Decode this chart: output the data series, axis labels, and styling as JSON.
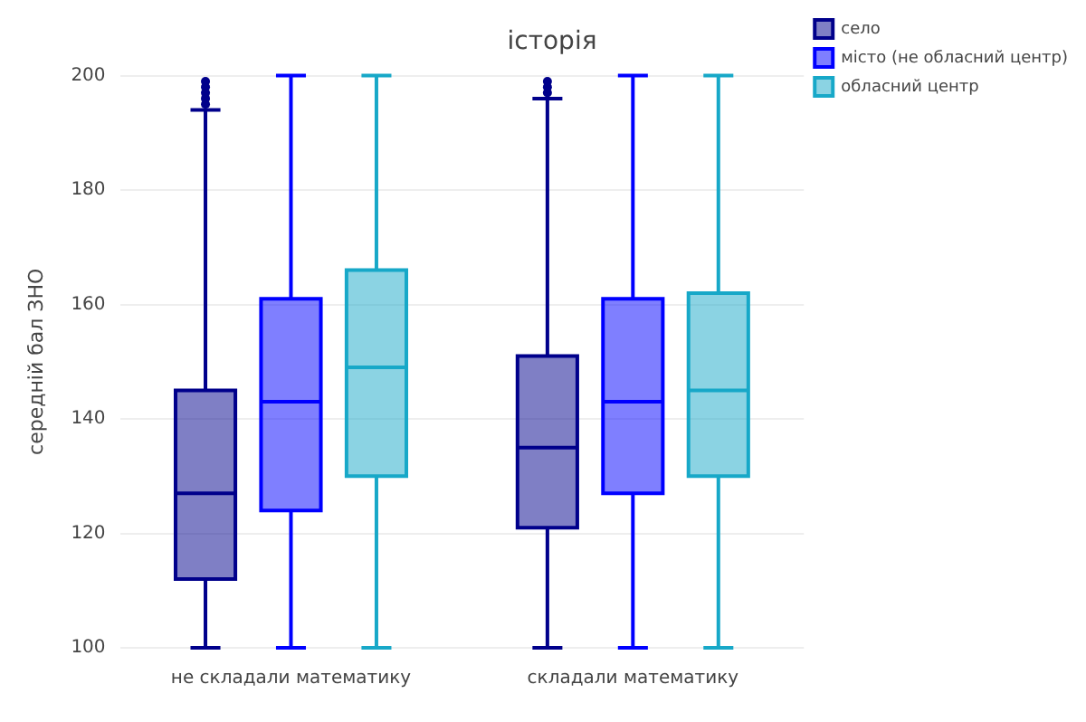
{
  "chart_data": {
    "type": "box",
    "title": "історія",
    "ylabel": "середній бал ЗНО",
    "categories": [
      "не складали математику",
      "складали математику"
    ],
    "ylim": [
      100,
      200
    ],
    "yticks": [
      100,
      120,
      140,
      160,
      180,
      200
    ],
    "grid": "y",
    "legend": "top right",
    "series": [
      {
        "name": "село",
        "color": "#00008b",
        "boxes": [
          {
            "low": 100,
            "q1": 112,
            "median": 127,
            "q3": 145,
            "high": 194,
            "outliers": [
              195,
              196,
              197,
              198,
              199
            ]
          },
          {
            "low": 100,
            "q1": 121,
            "median": 135,
            "q3": 151,
            "high": 196,
            "outliers": [
              197,
              198,
              199
            ]
          }
        ]
      },
      {
        "name": "місто (не обласний центр)",
        "color": "#0000ff",
        "boxes": [
          {
            "low": 100,
            "q1": 124,
            "median": 143,
            "q3": 161,
            "high": 200
          },
          {
            "low": 100,
            "q1": 127,
            "median": 143,
            "q3": 161,
            "high": 200
          }
        ]
      },
      {
        "name": "обласний центр",
        "color": "#17a8c8",
        "boxes": [
          {
            "low": 100,
            "q1": 130,
            "median": 149,
            "q3": 166,
            "high": 200
          },
          {
            "low": 100,
            "q1": 130,
            "median": 145,
            "q3": 162,
            "high": 200
          }
        ]
      }
    ]
  }
}
